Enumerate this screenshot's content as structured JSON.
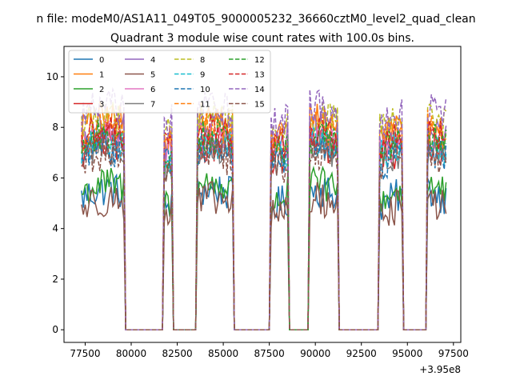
{
  "chart_data": {
    "type": "line",
    "suptitle": "n file: modeM0/AS1A11_049T05_9000005232_36660cztM0_level2_quad_clean",
    "title": "Quadrant 3 module wise count rates with 100.0s bins.",
    "xlabel": "",
    "ylabel": "",
    "x_offset_label": "+3.95e8",
    "xlim": [
      76350,
      97900
    ],
    "ylim": [
      -0.5,
      11.2
    ],
    "xticks": [
      77500,
      80000,
      82500,
      85000,
      87500,
      90000,
      92500,
      95000,
      97500
    ],
    "xtick_labels": [
      "77500",
      "80000",
      "82500",
      "85000",
      "87500",
      "90000",
      "92500",
      "95000",
      "97500"
    ],
    "yticks": [
      0,
      2,
      4,
      6,
      8,
      10
    ],
    "ytick_labels": [
      "0",
      "2",
      "4",
      "6",
      "8",
      "10"
    ],
    "grid": false,
    "legend": {
      "placement": "top-left",
      "columns": 4
    },
    "bin_seconds": 100,
    "active_intervals": [
      [
        77300,
        79600
      ],
      [
        81800,
        82200
      ],
      [
        83600,
        85500
      ],
      [
        87600,
        88500
      ],
      [
        89700,
        91200
      ],
      [
        93500,
        94700
      ],
      [
        96100,
        97100
      ]
    ],
    "series": [
      {
        "name": "0",
        "color": "#1f77b4",
        "dash": "solid",
        "level": 5.2
      },
      {
        "name": "1",
        "color": "#ff7f0e",
        "dash": "solid",
        "level": 8.0
      },
      {
        "name": "2",
        "color": "#2ca02c",
        "dash": "solid",
        "level": 5.4
      },
      {
        "name": "3",
        "color": "#d62728",
        "dash": "solid",
        "level": 7.0
      },
      {
        "name": "4",
        "color": "#9467bd",
        "dash": "solid",
        "level": 7.6
      },
      {
        "name": "5",
        "color": "#8c564b",
        "dash": "solid",
        "level": 4.8
      },
      {
        "name": "6",
        "color": "#e377c2",
        "dash": "solid",
        "level": 7.3
      },
      {
        "name": "7",
        "color": "#7f7f7f",
        "dash": "solid",
        "level": 6.9
      },
      {
        "name": "8",
        "color": "#bcbd22",
        "dash": "dashed",
        "level": 8.1
      },
      {
        "name": "9",
        "color": "#17becf",
        "dash": "dashed",
        "level": 7.1
      },
      {
        "name": "10",
        "color": "#1f77b4",
        "dash": "dashed",
        "level": 6.8
      },
      {
        "name": "11",
        "color": "#ff7f0e",
        "dash": "dashed",
        "level": 7.7
      },
      {
        "name": "12",
        "color": "#2ca02c",
        "dash": "dashed",
        "level": 7.3
      },
      {
        "name": "13",
        "color": "#d62728",
        "dash": "dashed",
        "level": 7.5
      },
      {
        "name": "14",
        "color": "#9467bd",
        "dash": "dashed",
        "level": 8.5
      },
      {
        "name": "15",
        "color": "#8c564b",
        "dash": "dashed",
        "level": 6.6
      }
    ]
  }
}
